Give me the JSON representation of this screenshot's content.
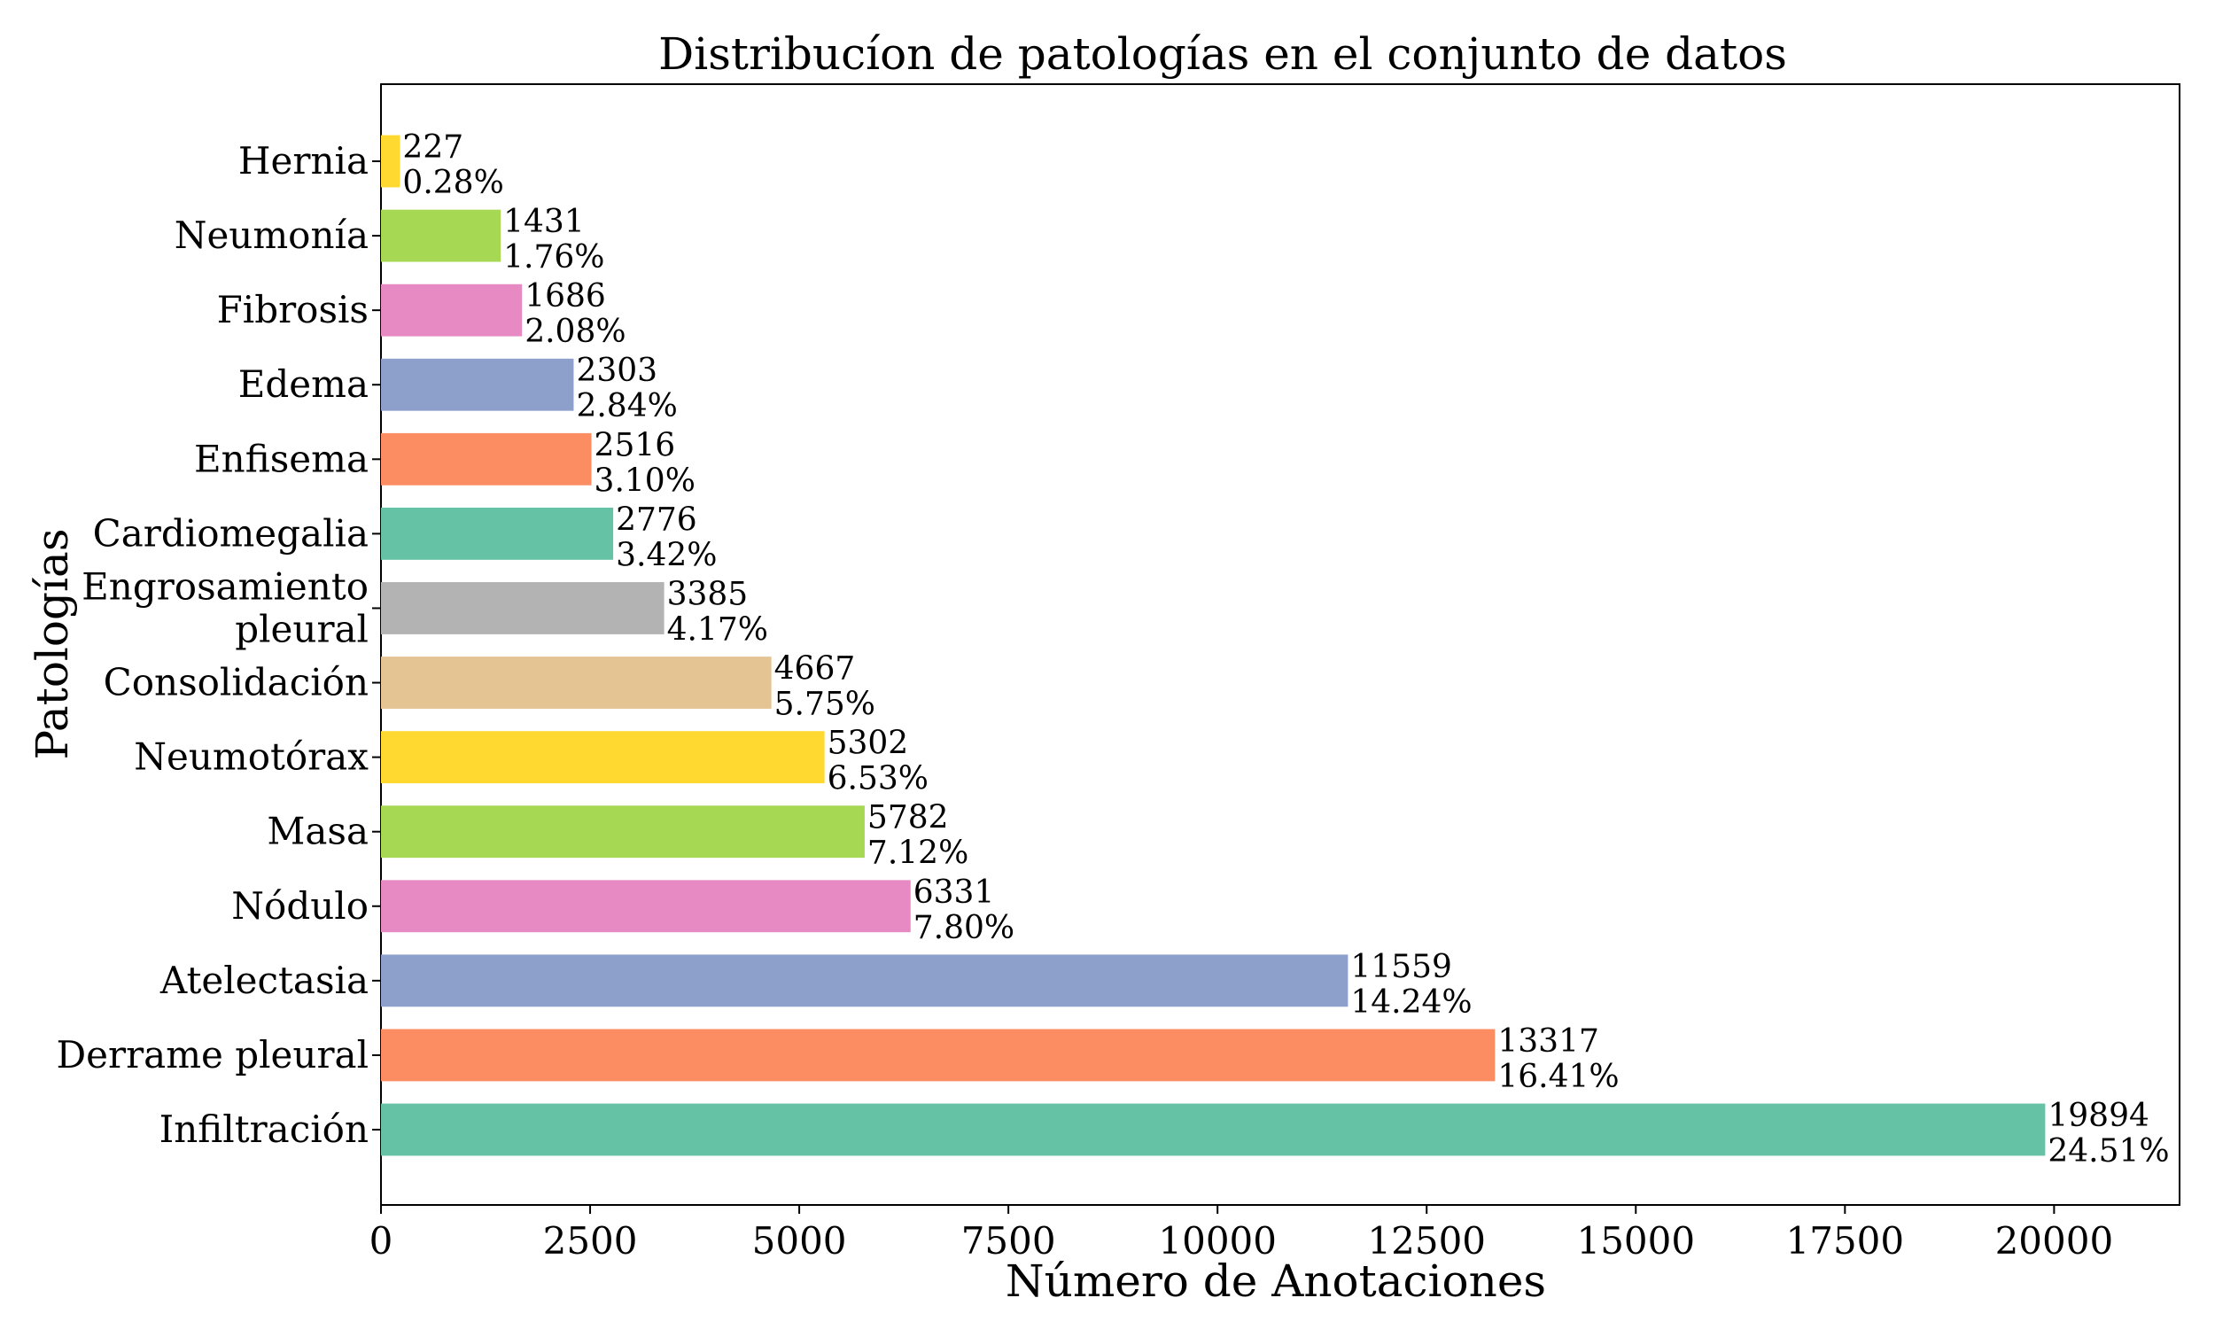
{
  "chart_data": {
    "type": "bar",
    "orientation": "horizontal",
    "title": "Distribucíon de patologías en el conjunto de datos",
    "xlabel": "Número de Anotaciones",
    "ylabel": "Patologías",
    "xlim": [
      0,
      21500
    ],
    "x_ticks": [
      0,
      2500,
      5000,
      7500,
      10000,
      12500,
      15000,
      17500,
      20000
    ],
    "x_tick_labels": [
      "0",
      "2500",
      "5000",
      "7500",
      "10000",
      "12500",
      "15000",
      "17500",
      "20000"
    ],
    "grid": false,
    "categories": [
      [
        "Infiltración"
      ],
      [
        "Derrame pleural"
      ],
      [
        "Atelectasia"
      ],
      [
        "Nódulo"
      ],
      [
        "Masa"
      ],
      [
        "Neumotórax"
      ],
      [
        "Consolidación"
      ],
      [
        "Engrosamiento",
        "pleural"
      ],
      [
        "Cardiomegalia"
      ],
      [
        "Enfisema"
      ],
      [
        "Edema"
      ],
      [
        "Fibrosis"
      ],
      [
        "Neumonía"
      ],
      [
        "Hernia"
      ]
    ],
    "values": [
      19894,
      13317,
      11559,
      6331,
      5782,
      5302,
      4667,
      3385,
      2776,
      2516,
      2303,
      1686,
      1431,
      227
    ],
    "value_labels": [
      "19894",
      "13317",
      "11559",
      "6331",
      "5782",
      "5302",
      "4667",
      "3385",
      "2776",
      "2516",
      "2303",
      "1686",
      "1431",
      "227"
    ],
    "percent_labels": [
      "24.51%",
      "16.41%",
      "14.24%",
      "7.80%",
      "7.12%",
      "6.53%",
      "5.75%",
      "4.17%",
      "3.42%",
      "3.10%",
      "2.84%",
      "2.08%",
      "1.76%",
      "0.28%"
    ],
    "colors": [
      "#66c2a5",
      "#fc8d62",
      "#8da0cb",
      "#e78ac3",
      "#a6d854",
      "#ffd92f",
      "#e5c494",
      "#b3b3b3",
      "#66c2a5",
      "#fc8d62",
      "#8da0cb",
      "#e78ac3",
      "#a6d854",
      "#ffd92f"
    ]
  }
}
